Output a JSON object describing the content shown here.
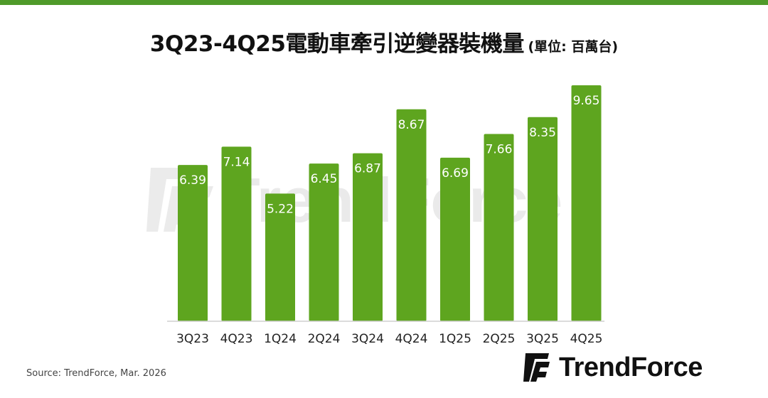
{
  "header": {
    "title": "3Q23-4Q25電動車牽引逆變器裝機量",
    "unit": "(單位: 百萬台)"
  },
  "chart_data": {
    "type": "bar",
    "categories": [
      "3Q23",
      "4Q23",
      "1Q24",
      "2Q24",
      "3Q24",
      "4Q24",
      "1Q25",
      "2Q25",
      "3Q25",
      "4Q25"
    ],
    "values": [
      6.39,
      7.14,
      5.22,
      6.45,
      6.87,
      8.67,
      6.69,
      7.66,
      8.35,
      9.65
    ],
    "value_labels": [
      "6.39",
      "7.14",
      "5.22",
      "6.45",
      "6.87",
      "8.67",
      "6.69",
      "7.66",
      "8.35",
      "9.65"
    ],
    "ylim": [
      0,
      10
    ],
    "bar_color": "#5ea51f",
    "label_color": "#ffffff",
    "grid": false,
    "y_axis_visible": false
  },
  "footer": {
    "source": "Source: TrendForce, Mar. 2026",
    "logo_text": "TrendForce",
    "watermark_text": "TrendForce"
  },
  "colors": {
    "accent": "#4f9a2a",
    "bar": "#5ea51f",
    "logo_mark": "#111111"
  }
}
